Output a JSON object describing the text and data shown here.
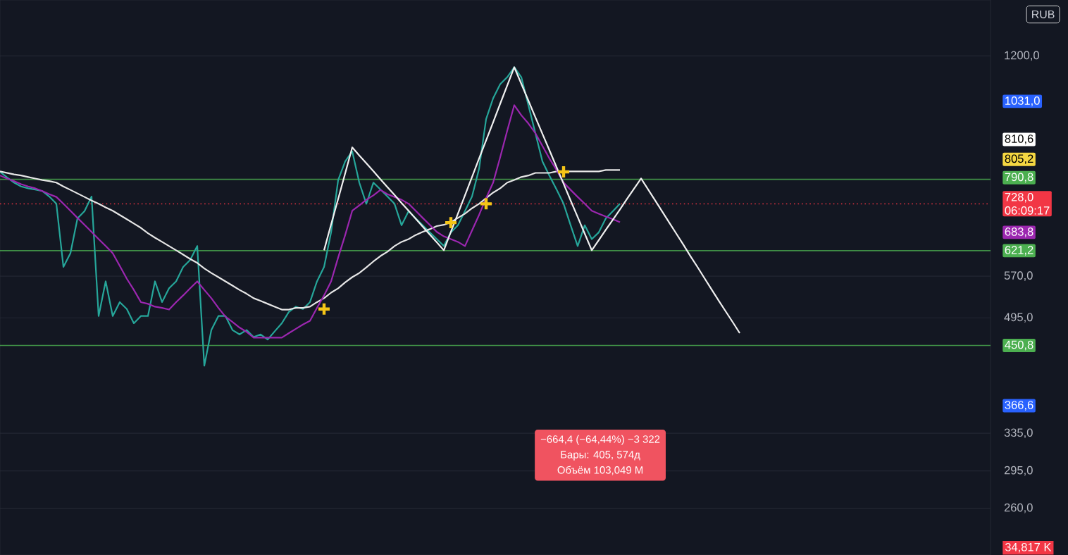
{
  "chart_data": {
    "type": "line",
    "log": "y",
    "ylim": [
      222,
      1450
    ],
    "tick_labels": "y",
    "grid": "y",
    "categories": [
      null,
      null,
      null,
      null,
      null,
      null,
      null,
      null,
      null,
      null,
      null,
      null,
      null,
      null,
      null,
      null,
      null,
      null,
      null,
      null,
      null,
      null,
      null,
      null,
      null,
      null,
      null,
      null,
      null,
      null,
      null,
      null,
      null,
      null,
      null,
      null,
      null,
      null,
      null,
      null,
      null,
      null,
      null,
      null,
      null,
      null,
      null,
      null,
      null,
      null,
      null,
      null,
      null,
      null,
      null,
      null,
      null,
      null,
      null,
      null,
      null,
      null,
      null,
      null,
      null,
      null,
      null,
      null,
      null,
      null,
      null,
      null,
      null,
      null,
      null,
      null,
      null,
      null,
      null,
      null,
      null,
      null,
      null,
      null,
      null,
      null,
      null,
      null,
      null,
      null,
      null,
      null,
      null,
      null,
      null,
      null,
      null,
      null,
      null,
      null,
      null,
      null,
      null,
      null,
      null,
      null,
      null
    ],
    "yticks": [
      {
        "value": 1200,
        "label": "1200,0"
      },
      {
        "value": 570,
        "label": "570,0"
      },
      {
        "value": 495,
        "label": "495,0"
      },
      {
        "value": 335,
        "label": "335,0"
      },
      {
        "value": 295,
        "label": "295,0"
      },
      {
        "value": 260,
        "label": "260,0"
      }
    ],
    "series": [
      {
        "color": "#26a69a",
        "values": [
          811,
          796,
          782,
          772,
          767,
          764,
          760,
          746,
          728,
          588,
          616,
          693,
          710,
          746,
          498,
          560,
          498,
          522,
          510,
          486,
          498,
          498,
          560,
          522,
          547,
          560,
          588,
          602,
          631,
          421,
          475,
          498,
          498,
          475,
          468,
          475,
          464,
          468,
          460,
          473,
          486,
          505,
          514,
          510,
          522,
          560,
          588,
          661,
          789,
          840,
          869,
          782,
          728,
          782,
          764,
          746,
          728,
          677,
          710,
          693,
          677,
          661,
          646,
          631,
          661,
          677,
          710,
          746,
          819,
          969,
          1040,
          1091,
          1117,
          1155,
          1117,
          1016,
          924,
          840,
          800,
          764,
          728,
          677,
          631,
          677,
          646,
          661,
          693,
          710,
          728,
          null,
          null,
          null,
          null,
          null,
          null,
          null,
          null,
          null,
          null,
          null,
          null,
          null,
          null,
          null,
          null,
          null,
          null
        ]
      },
      {
        "color": "#e6e6e6",
        "values": [
          812,
          808,
          804,
          801,
          797,
          793,
          789,
          786,
          782,
          772,
          763,
          754,
          745,
          736,
          728,
          719,
          711,
          701,
          691,
          681,
          671,
          659,
          649,
          640,
          631,
          622,
          613,
          604,
          596,
          585,
          576,
          568,
          560,
          552,
          544,
          537,
          529,
          524,
          519,
          514,
          509,
          509,
          512,
          512,
          514,
          522,
          529,
          539,
          547,
          558,
          568,
          576,
          587,
          599,
          610,
          619,
          631,
          640,
          646,
          655,
          662,
          668,
          675,
          678,
          684,
          694,
          704,
          717,
          728,
          742,
          756,
          767,
          782,
          789,
          797,
          801,
          808,
          808,
          808,
          812,
          812,
          812,
          812,
          812,
          812,
          812,
          816,
          816,
          816,
          null,
          null,
          null,
          null,
          null,
          null,
          null,
          null,
          null,
          null,
          null,
          null,
          null,
          null,
          null,
          null,
          null,
          null
        ]
      },
      {
        "color": "#9c27b0",
        "values": [
          801,
          793,
          786,
          778,
          772,
          767,
          760,
          752,
          745,
          728,
          711,
          694,
          678,
          662,
          646,
          631,
          616,
          590,
          565,
          544,
          522,
          519,
          514,
          512,
          509,
          522,
          534,
          547,
          560,
          544,
          529,
          512,
          497,
          488,
          479,
          472,
          463,
          463,
          463,
          463,
          463,
          470,
          477,
          484,
          490,
          512,
          534,
          560,
          607,
          655,
          711,
          724,
          738,
          749,
          763,
          752,
          745,
          738,
          728,
          711,
          694,
          678,
          662,
          652,
          646,
          640,
          631,
          665,
          701,
          742,
          782,
          852,
          932,
          1016,
          982,
          955,
          924,
          885,
          848,
          816,
          782,
          763,
          745,
          728,
          711,
          704,
          697,
          691,
          684,
          null,
          null,
          null,
          null,
          null,
          null,
          null,
          null,
          null,
          null,
          null,
          null,
          null,
          null,
          null,
          null,
          null,
          null
        ]
      },
      {
        "color": "#f0f0f0",
        "values": [
          null,
          null,
          null,
          null,
          null,
          null,
          null,
          null,
          null,
          null,
          null,
          null,
          null,
          null,
          null,
          null,
          null,
          null,
          null,
          null,
          null,
          null,
          null,
          null,
          null,
          null,
          null,
          null,
          null,
          null,
          null,
          null,
          null,
          null,
          null,
          null,
          null,
          null,
          null,
          null,
          null,
          null,
          null,
          null,
          null,
          null,
          622,
          679,
          740,
          807,
          881,
          857,
          835,
          813,
          791,
          770,
          750,
          730,
          711,
          692,
          674,
          656,
          639,
          622,
          662,
          704,
          749,
          797,
          848,
          902,
          959,
          1021,
          1086,
          1155,
          1092,
          1032,
          975,
          922,
          872,
          824,
          779,
          736,
          696,
          658,
          622,
          644,
          667,
          690,
          714,
          740,
          766,
          793,
          764,
          736,
          709,
          683,
          658,
          634,
          610,
          588,
          566,
          545,
          525,
          506,
          488,
          470,
          null
        ]
      },
      {
        "type": "scatter",
        "color": "#f5c518",
        "marker": "cross",
        "values": [
          null,
          null,
          null,
          null,
          null,
          null,
          null,
          null,
          null,
          null,
          null,
          null,
          null,
          null,
          null,
          null,
          null,
          null,
          null,
          null,
          null,
          null,
          null,
          null,
          null,
          null,
          null,
          null,
          null,
          null,
          null,
          null,
          null,
          null,
          null,
          null,
          null,
          null,
          null,
          null,
          null,
          null,
          null,
          null,
          null,
          null,
          510,
          null,
          null,
          null,
          null,
          null,
          null,
          null,
          null,
          null,
          null,
          null,
          null,
          null,
          null,
          null,
          null,
          null,
          683,
          null,
          null,
          null,
          null,
          728,
          null,
          null,
          null,
          null,
          null,
          null,
          null,
          null,
          null,
          null,
          811,
          null,
          null,
          null,
          null,
          null,
          null,
          null,
          null,
          null,
          null,
          null,
          null,
          null,
          null,
          null,
          null,
          null,
          null,
          null,
          null,
          null,
          null,
          null,
          null,
          null,
          null
        ]
      }
    ],
    "ref_lines": [
      {
        "axis": "y",
        "value": 790.8,
        "label": "790,8",
        "color": "#4caf50",
        "line_style": "solid"
      },
      {
        "axis": "y",
        "value": 728,
        "label": "728,0",
        "color": "#f23645",
        "line_style": "dotted"
      },
      {
        "axis": "y",
        "value": 621.2,
        "label": "621,2",
        "color": "#4caf50",
        "line_style": "solid"
      },
      {
        "axis": "y",
        "value": 450.8,
        "label": "450,8",
        "color": "#4caf50",
        "line_style": "solid"
      }
    ],
    "annotations": [
      "RUB",
      "−664,4 (−64,44%) −3 322",
      "Бары: 405, 574д",
      "Объём 103,049 M",
      "06:09:17",
      "34,817 K",
      "1031,0",
      "810,6",
      "805,2",
      "683,8",
      "366,6"
    ]
  }
}
